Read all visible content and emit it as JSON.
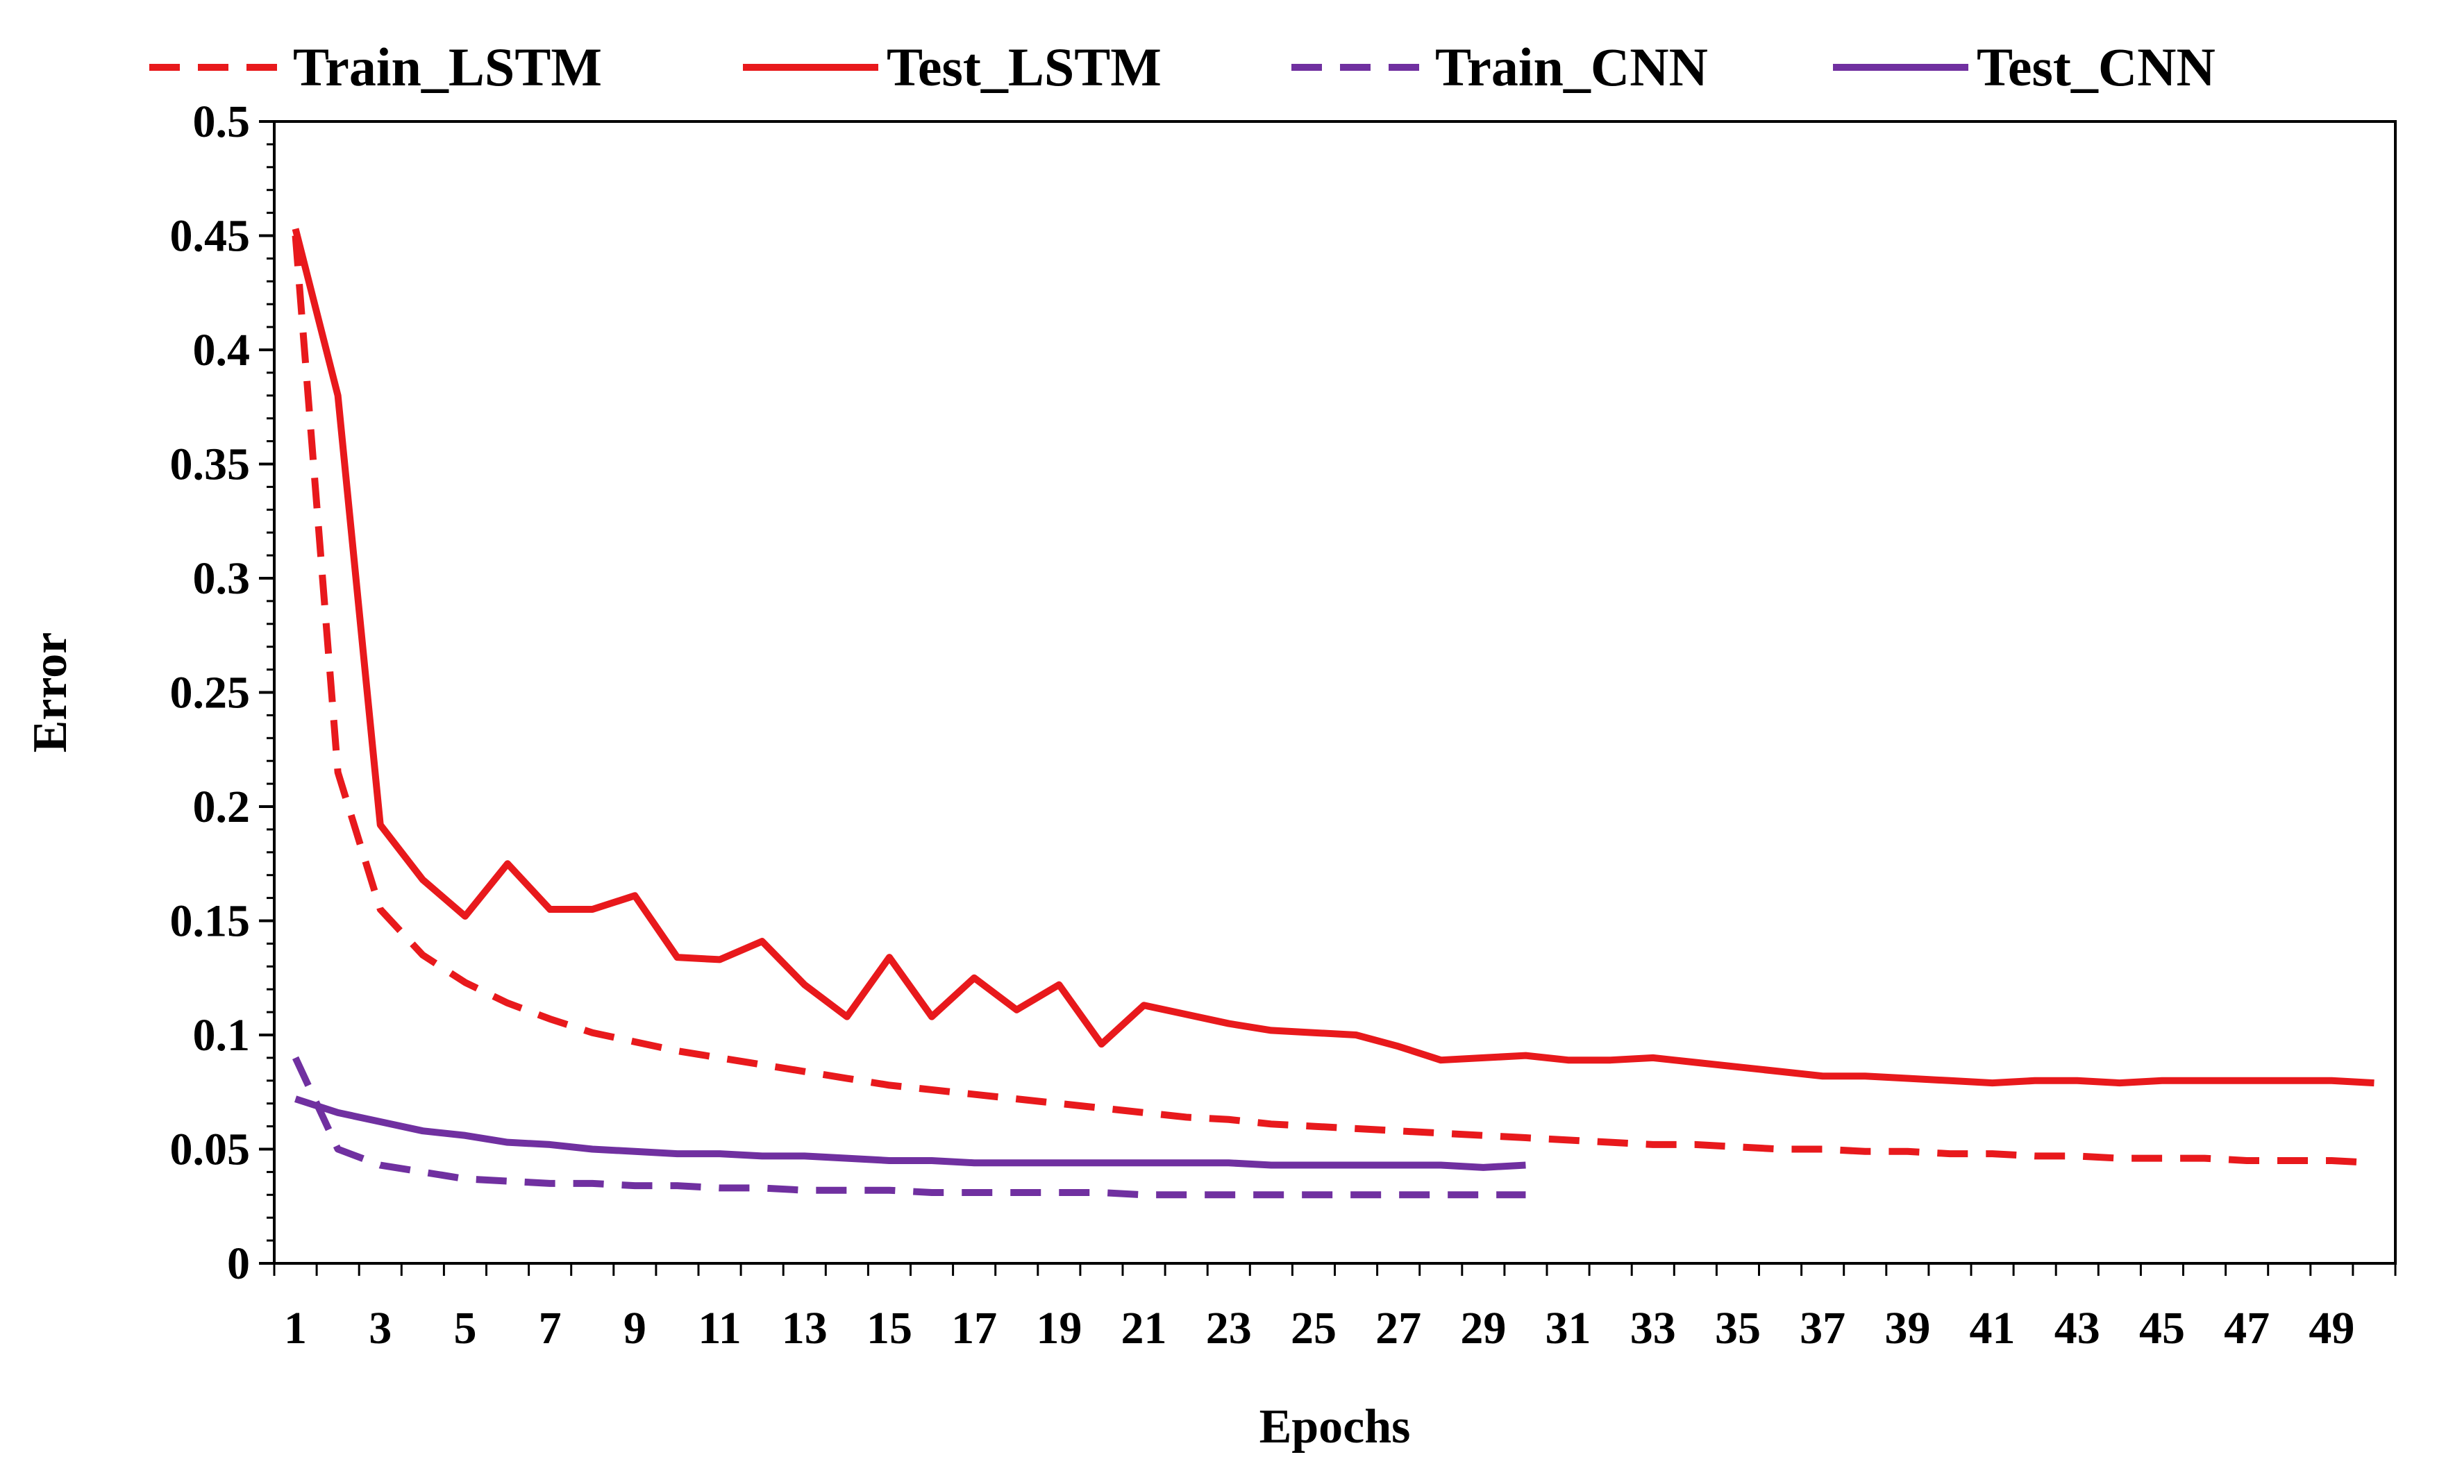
{
  "chart_data": {
    "type": "line",
    "title": "",
    "xlabel": "Epochs",
    "ylabel": "Error",
    "xlim": [
      1,
      50
    ],
    "ylim": [
      0,
      0.5
    ],
    "y_ticks": [
      "0",
      "0.05",
      "0.1",
      "0.15",
      "0.2",
      "0.25",
      "0.3",
      "0.35",
      "0.4",
      "0.45",
      "0.5"
    ],
    "x_tick_labels": [
      "1",
      "3",
      "5",
      "7",
      "9",
      "11",
      "13",
      "15",
      "17",
      "19",
      "21",
      "23",
      "25",
      "27",
      "29",
      "31",
      "33",
      "35",
      "37",
      "39",
      "41",
      "43",
      "45",
      "47",
      "49"
    ],
    "grid": false,
    "legend_position": "top",
    "series": [
      {
        "name": "Train_LSTM",
        "color": "#e8191c",
        "style": "dashed",
        "x": [
          1,
          2,
          3,
          4,
          5,
          6,
          7,
          8,
          9,
          10,
          11,
          12,
          13,
          14,
          15,
          16,
          17,
          18,
          19,
          20,
          21,
          22,
          23,
          24,
          25,
          26,
          27,
          28,
          29,
          30,
          31,
          32,
          33,
          34,
          35,
          36,
          37,
          38,
          39,
          40,
          41,
          42,
          43,
          44,
          45,
          46,
          47,
          48,
          49,
          50
        ],
        "values": [
          0.45,
          0.215,
          0.155,
          0.135,
          0.123,
          0.114,
          0.107,
          0.101,
          0.097,
          0.093,
          0.09,
          0.087,
          0.084,
          0.081,
          0.078,
          0.076,
          0.074,
          0.072,
          0.07,
          0.068,
          0.066,
          0.064,
          0.063,
          0.061,
          0.06,
          0.059,
          0.058,
          0.057,
          0.056,
          0.055,
          0.054,
          0.053,
          0.052,
          0.052,
          0.051,
          0.05,
          0.05,
          0.049,
          0.049,
          0.048,
          0.048,
          0.047,
          0.047,
          0.046,
          0.046,
          0.046,
          0.045,
          0.045,
          0.045,
          0.044
        ]
      },
      {
        "name": "Test_LSTM",
        "color": "#e8191c",
        "style": "solid",
        "x": [
          1,
          2,
          3,
          4,
          5,
          6,
          7,
          8,
          9,
          10,
          11,
          12,
          13,
          14,
          15,
          16,
          17,
          18,
          19,
          20,
          21,
          22,
          23,
          24,
          25,
          26,
          27,
          28,
          29,
          30,
          31,
          32,
          33,
          34,
          35,
          36,
          37,
          38,
          39,
          40,
          41,
          42,
          43,
          44,
          45,
          46,
          47,
          48,
          49,
          50
        ],
        "values": [
          0.453,
          0.38,
          0.192,
          0.168,
          0.152,
          0.175,
          0.155,
          0.155,
          0.161,
          0.134,
          0.133,
          0.141,
          0.122,
          0.108,
          0.134,
          0.108,
          0.125,
          0.111,
          0.122,
          0.096,
          0.113,
          0.109,
          0.105,
          0.102,
          0.101,
          0.1,
          0.095,
          0.089,
          0.09,
          0.091,
          0.089,
          0.089,
          0.09,
          0.088,
          0.086,
          0.084,
          0.082,
          0.082,
          0.081,
          0.08,
          0.079,
          0.08,
          0.08,
          0.079,
          0.08,
          0.08,
          0.08,
          0.08,
          0.08,
          0.079
        ]
      },
      {
        "name": "Train_CNN",
        "color": "#7030a0",
        "style": "dashed",
        "x": [
          1,
          2,
          3,
          4,
          5,
          6,
          7,
          8,
          9,
          10,
          11,
          12,
          13,
          14,
          15,
          16,
          17,
          18,
          19,
          20,
          21,
          22,
          23,
          24,
          25,
          26,
          27,
          28,
          29,
          30
        ],
        "values": [
          0.09,
          0.05,
          0.043,
          0.04,
          0.037,
          0.036,
          0.035,
          0.035,
          0.034,
          0.034,
          0.033,
          0.033,
          0.032,
          0.032,
          0.032,
          0.031,
          0.031,
          0.031,
          0.031,
          0.031,
          0.03,
          0.03,
          0.03,
          0.03,
          0.03,
          0.03,
          0.03,
          0.03,
          0.03,
          0.03
        ]
      },
      {
        "name": "Test_CNN",
        "color": "#7030a0",
        "style": "solid",
        "x": [
          1,
          2,
          3,
          4,
          5,
          6,
          7,
          8,
          9,
          10,
          11,
          12,
          13,
          14,
          15,
          16,
          17,
          18,
          19,
          20,
          21,
          22,
          23,
          24,
          25,
          26,
          27,
          28,
          29,
          30
        ],
        "values": [
          0.072,
          0.066,
          0.062,
          0.058,
          0.056,
          0.053,
          0.052,
          0.05,
          0.049,
          0.048,
          0.048,
          0.047,
          0.047,
          0.046,
          0.045,
          0.045,
          0.044,
          0.044,
          0.044,
          0.044,
          0.044,
          0.044,
          0.044,
          0.043,
          0.043,
          0.043,
          0.043,
          0.043,
          0.042,
          0.043
        ]
      }
    ]
  }
}
